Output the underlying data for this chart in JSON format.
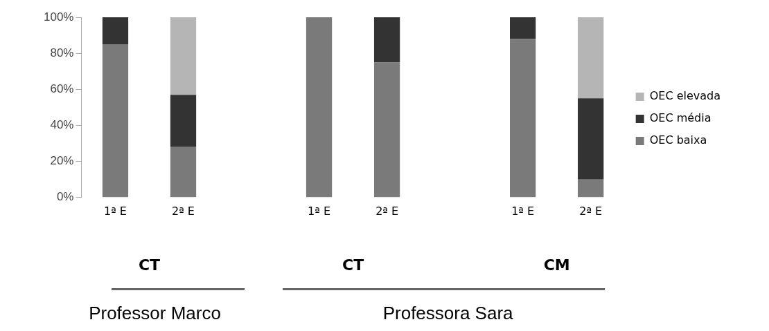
{
  "chart_data": {
    "type": "bar",
    "stacked": true,
    "categories": [
      "1ª E",
      "2ª E",
      null,
      "1ª E",
      "2ª E",
      null,
      "1ª E",
      "2ª E"
    ],
    "series": [
      {
        "name": "OEC baixa",
        "color": "#7a7a7a",
        "values": [
          85,
          28,
          null,
          100,
          75,
          null,
          88,
          10
        ]
      },
      {
        "name": "OEC média",
        "color": "#333333",
        "values": [
          15,
          29,
          null,
          0,
          25,
          null,
          12,
          45
        ]
      },
      {
        "name": "OEC elevada",
        "color": "#b5b5b5",
        "values": [
          0,
          43,
          null,
          0,
          0,
          null,
          0,
          45
        ]
      }
    ],
    "ylim": [
      0,
      100
    ],
    "yticks": [
      {
        "value": 0,
        "label": "0%"
      },
      {
        "value": 20,
        "label": "20%"
      },
      {
        "value": 40,
        "label": "40%"
      },
      {
        "value": 60,
        "label": "60%"
      },
      {
        "value": 80,
        "label": "80%"
      },
      {
        "value": 100,
        "label": "100%"
      }
    ],
    "grid": false,
    "legend": "right",
    "annotations": [
      "CT",
      "CT",
      "CM",
      "Professor Marco",
      "Professora Sara"
    ]
  }
}
